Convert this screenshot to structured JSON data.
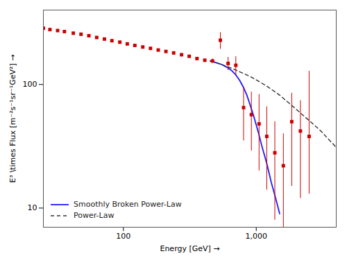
{
  "chart_data": {
    "type": "scatter",
    "xlabel": "Energy [GeV]",
    "ylabel": "E³ \\times Flux [m⁻²s⁻¹sr⁻¹GeV²]",
    "log": true,
    "grid": false,
    "legend": "lower left",
    "xlim": [
      25,
      4000
    ],
    "ylim": [
      7,
      400
    ],
    "xticks": [
      100,
      {
        "value": 1000,
        "label": "1,000"
      }
    ],
    "yticks": [
      10,
      100
    ],
    "series": [
      {
        "type": "scatter",
        "color": "#cc0000",
        "marker": "square",
        "x": [
          25,
          28,
          32,
          36,
          42,
          48,
          55,
          63,
          72,
          82,
          94,
          107,
          122,
          140,
          160,
          183,
          209,
          239,
          274,
          313,
          358,
          410,
          469,
          537,
          614,
          702,
          803,
          919,
          1050,
          1200,
          1380,
          1600,
          1850,
          2150,
          2500
        ],
        "values": [
          285,
          278,
          273,
          268,
          260,
          255,
          248,
          240,
          233,
          226,
          220,
          213,
          207,
          201,
          196,
          190,
          185,
          180,
          174,
          169,
          162,
          157,
          155,
          228,
          148,
          143,
          65,
          57,
          48,
          38,
          28,
          22,
          50,
          42,
          38
        ],
        "err_low": [
          10,
          8,
          7,
          6,
          5,
          5,
          4,
          4,
          4,
          4,
          4,
          4,
          4,
          4,
          4,
          4,
          4,
          4,
          4,
          4,
          4,
          4,
          6,
          35,
          18,
          25,
          30,
          28,
          28,
          24,
          20,
          15,
          35,
          30,
          25
        ],
        "err_high": [
          10,
          8,
          7,
          6,
          5,
          5,
          4,
          4,
          4,
          4,
          4,
          4,
          4,
          4,
          4,
          4,
          4,
          4,
          4,
          4,
          4,
          4,
          6,
          35,
          18,
          25,
          30,
          30,
          35,
          28,
          22,
          18,
          35,
          32,
          90
        ]
      },
      {
        "name": "Smoothly Broken Power-Law",
        "type": "line",
        "color": "#1a1aff",
        "line_style": "solid",
        "x": [
          450,
          500,
          550,
          600,
          650,
          700,
          750,
          800,
          850,
          900,
          950,
          1000,
          1050,
          1100,
          1150,
          1200,
          1300,
          1400,
          1500
        ],
        "values": [
          155,
          150,
          145,
          138,
          130,
          120,
          108,
          95,
          82,
          68,
          57,
          47,
          39,
          32,
          27,
          23,
          16,
          12,
          9
        ]
      },
      {
        "name": "Power-Law",
        "type": "line",
        "color": "#333333",
        "line_style": "dashed",
        "x": [
          450,
          500,
          600,
          700,
          800,
          900,
          1000,
          1200,
          1500,
          2000,
          3000,
          4000
        ],
        "values": [
          155,
          150,
          140,
          131,
          123,
          116,
          109,
          97,
          82,
          63,
          43,
          31
        ]
      }
    ]
  }
}
